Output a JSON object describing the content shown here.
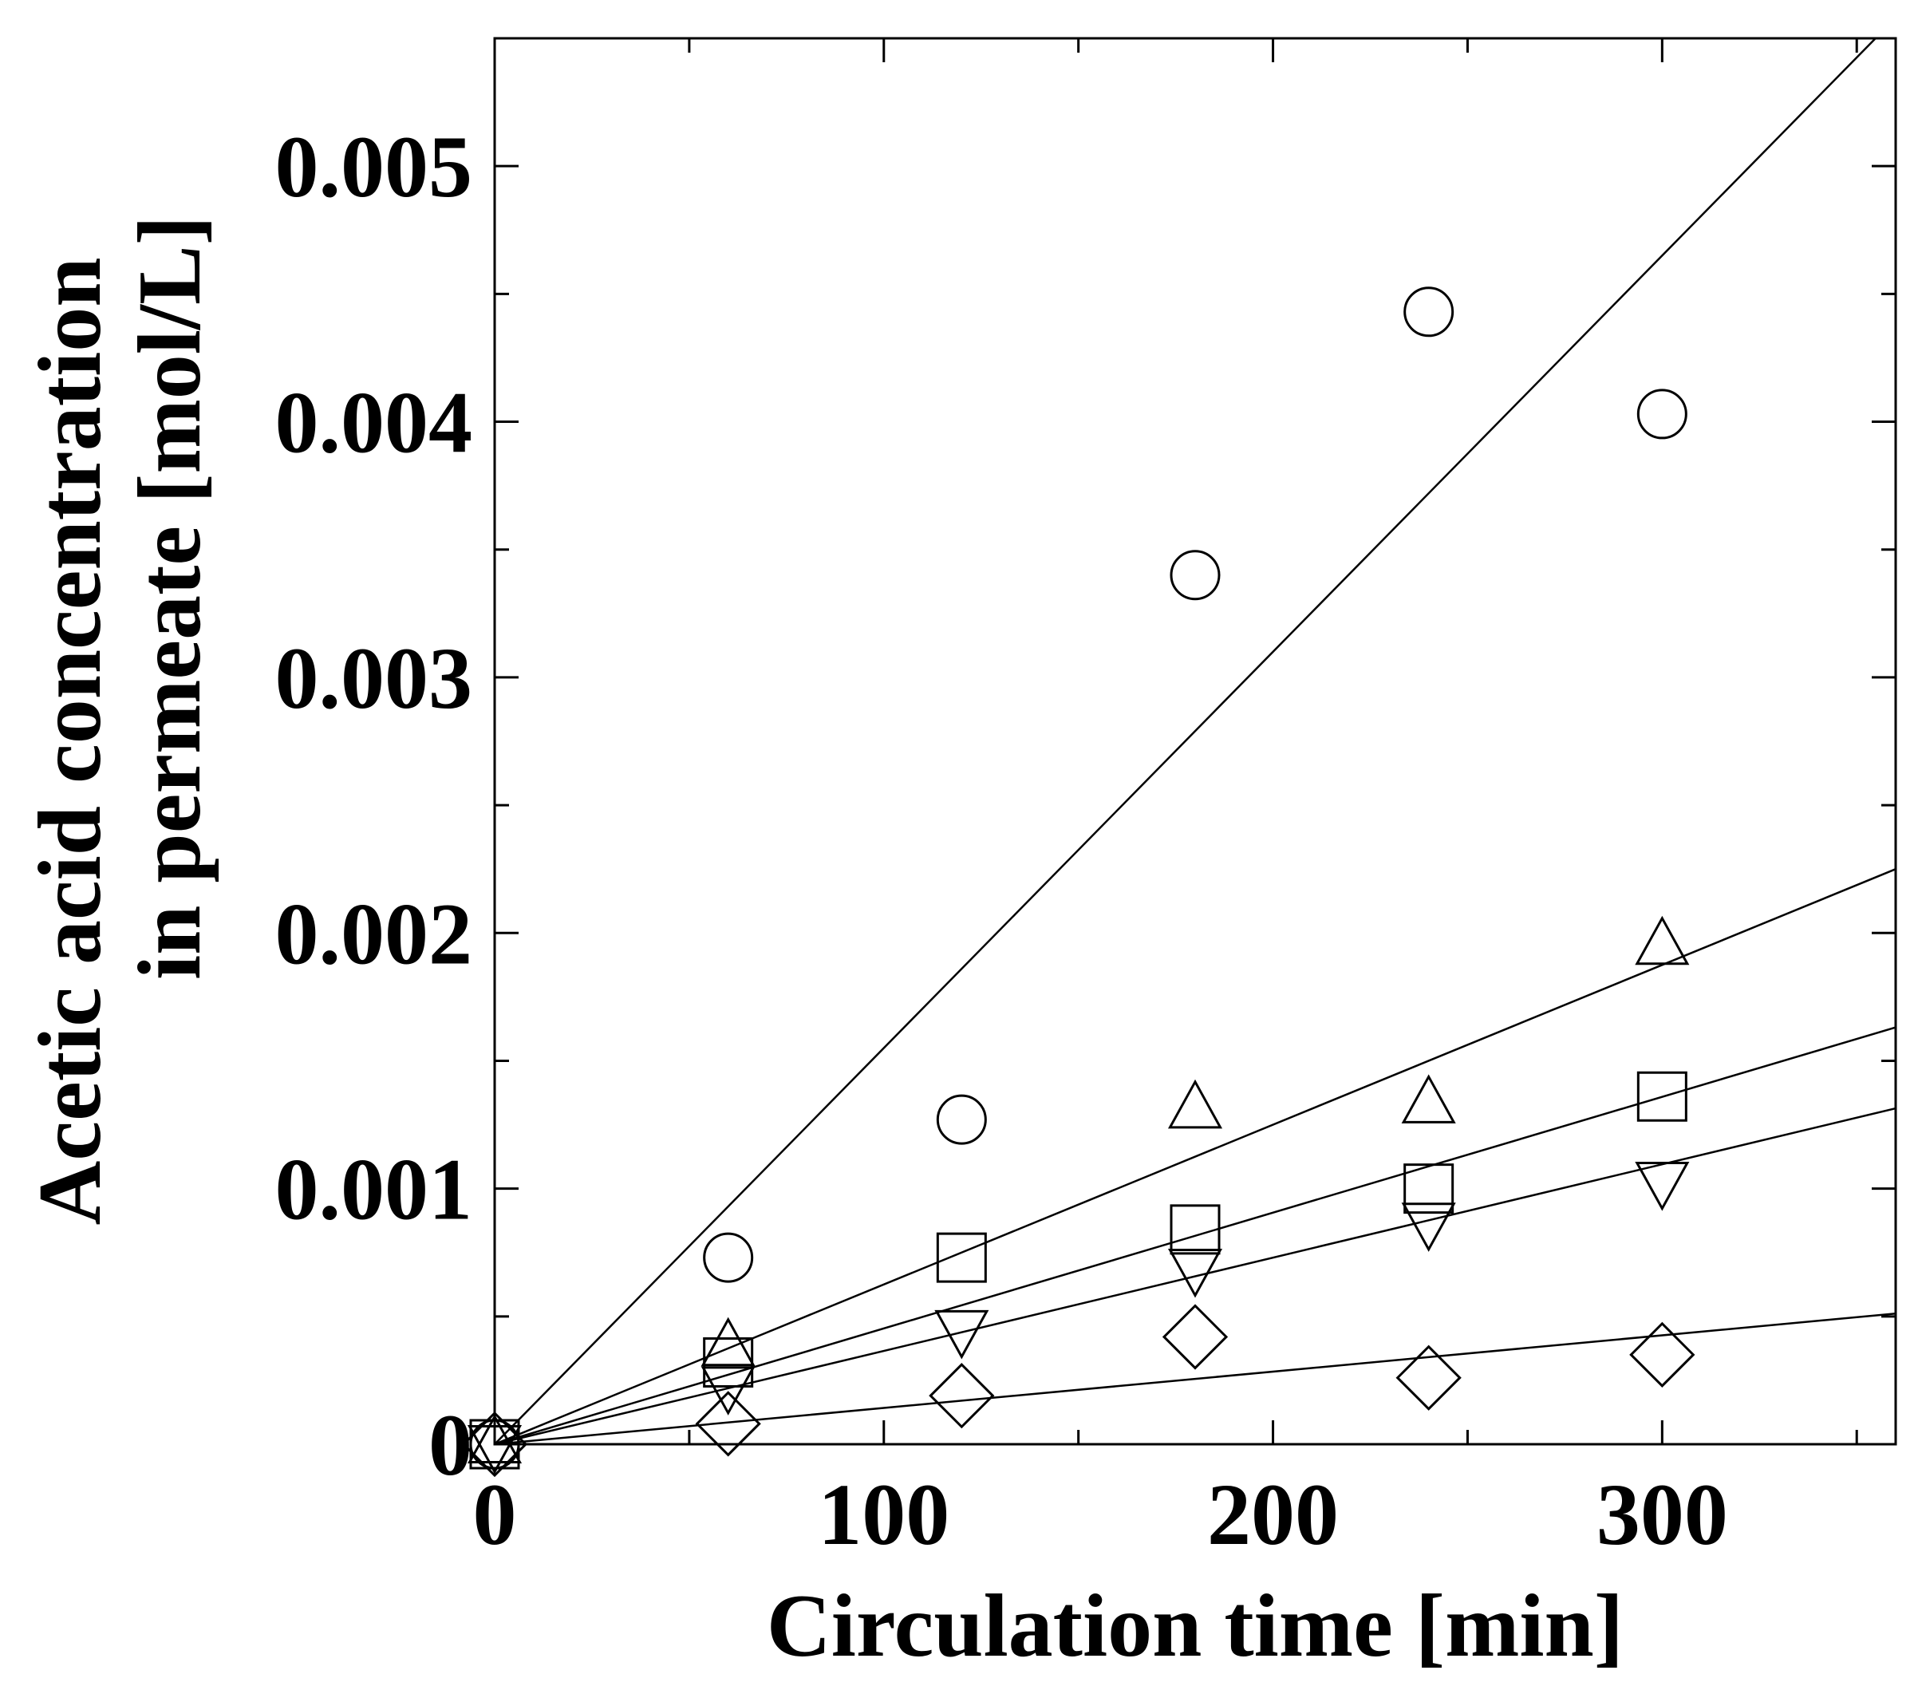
{
  "chart_data": {
    "type": "scatter",
    "title": "",
    "xlabel": "Circulation time [min]",
    "ylabel_lines": [
      "Acetic acid concentration",
      "in permeate [mol/L]"
    ],
    "xlim": [
      0,
      360
    ],
    "ylim": [
      0,
      0.0055
    ],
    "xticks": [
      0,
      100,
      200,
      300
    ],
    "xtick_labels": [
      "0",
      "100",
      "200",
      "300"
    ],
    "xminor_step": 50,
    "yticks": [
      0,
      0.001,
      0.002,
      0.003,
      0.004,
      0.005
    ],
    "ytick_labels": [
      "0",
      "0.001",
      "0.002",
      "0.003",
      "0.004",
      "0.005"
    ],
    "yminor_step": 0.0005,
    "grid": false,
    "colors": {
      "ink": "#000000",
      "background": "#ffffff"
    },
    "series": [
      {
        "name": "circle",
        "marker": "circle",
        "x": [
          0,
          60,
          120,
          180,
          240,
          300
        ],
        "y": [
          0,
          0.00073,
          0.00127,
          0.0034,
          0.00443,
          0.00403
        ],
        "fit_slope": 1.55e-05
      },
      {
        "name": "triangle-up",
        "marker": "triangle-up",
        "x": [
          0,
          60,
          180,
          240,
          300
        ],
        "y": [
          0,
          0.00038,
          0.00131,
          0.00133,
          0.00195
        ],
        "fit_slope": 6.25e-06
      },
      {
        "name": "square",
        "marker": "square",
        "x": [
          0,
          60,
          120,
          180,
          240,
          300
        ],
        "y": [
          0,
          0.00032,
          0.00073,
          0.00084,
          0.001,
          0.00136
        ],
        "fit_slope": 4.53e-06
      },
      {
        "name": "triangle-down",
        "marker": "triangle-down",
        "x": [
          0,
          60,
          120,
          180,
          240,
          300
        ],
        "y": [
          0,
          0.00023,
          0.00045,
          0.00069,
          0.00087,
          0.00103
        ],
        "fit_slope": 3.65e-06
      },
      {
        "name": "diamond",
        "marker": "diamond",
        "x": [
          0,
          60,
          120,
          180,
          240,
          300
        ],
        "y": [
          0,
          8e-05,
          0.00019,
          0.00042,
          0.00026,
          0.00035
        ],
        "fit_slope": 1.42e-06
      }
    ]
  }
}
